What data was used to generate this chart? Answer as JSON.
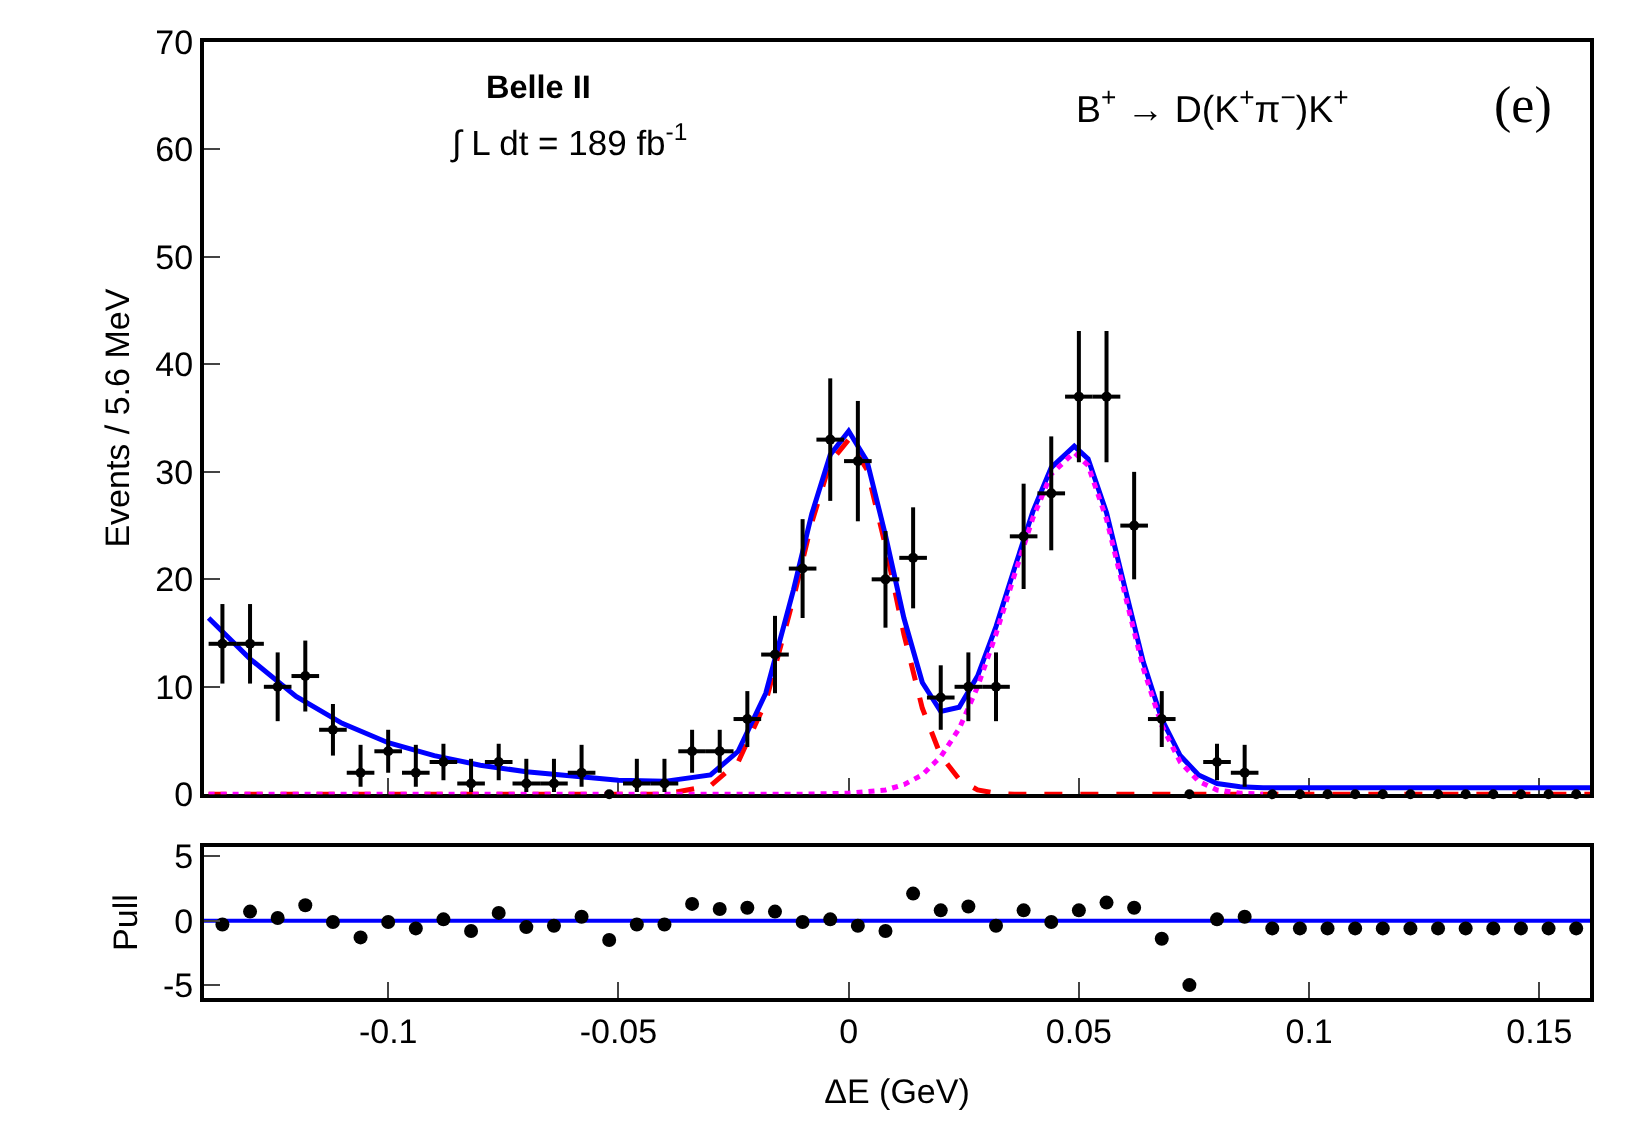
{
  "chart_data": [
    {
      "type": "scatter",
      "ylabel": "Events / 5.6 MeV",
      "xlim": [
        -0.14,
        0.161
      ],
      "xticks": [
        -0.1,
        -0.05,
        0,
        0.05,
        0.1,
        0.15
      ],
      "ylim": [
        0,
        70
      ],
      "yticks": [
        0,
        10,
        20,
        30,
        40,
        50,
        60,
        70
      ],
      "tick_labels": "y",
      "legend": false,
      "annotations": [
        "Belle II",
        "∫ L dt = 189 fb$^{-1}$",
        "B$^{+}$ → D(K$^{+}$π$^{−}$)K$^{+}$",
        "(e)"
      ],
      "x": [
        -0.136,
        -0.13,
        -0.124,
        -0.118,
        -0.112,
        -0.106,
        -0.1,
        -0.094,
        -0.088,
        -0.082,
        -0.076,
        -0.07,
        -0.064,
        -0.058,
        -0.052,
        -0.046,
        -0.04,
        -0.034,
        -0.028,
        -0.022,
        -0.016,
        -0.01,
        -0.004,
        0.002,
        0.008,
        0.014,
        0.02,
        0.026,
        0.032,
        0.038,
        0.044,
        0.05,
        0.056,
        0.062,
        0.068,
        0.074,
        0.08,
        0.086,
        0.092,
        0.098,
        0.104,
        0.11,
        0.116,
        0.122,
        0.128,
        0.134,
        0.14,
        0.146,
        0.152,
        0.158
      ],
      "series": [
        {
          "type": "scatter",
          "marker": "circle",
          "color": "#000000",
          "values": [
            14,
            14,
            10,
            11,
            6,
            2,
            4,
            2,
            3,
            1,
            3,
            1,
            1,
            2,
            0,
            1,
            1,
            4,
            4,
            7,
            13,
            21,
            33,
            31,
            20,
            22,
            9,
            10,
            10,
            24,
            28,
            37,
            37,
            25,
            7,
            0,
            3,
            2,
            0,
            0,
            0,
            0,
            0,
            0,
            0,
            0,
            0,
            0,
            0,
            0
          ],
          "errors": [
            3.7,
            3.7,
            3.2,
            3.3,
            2.4,
            [
              0.7,
              4.6
            ],
            2,
            [
              0.7,
              4.6
            ],
            1.7,
            [
              0.2,
              3.3
            ],
            1.7,
            [
              0.2,
              3.3
            ],
            [
              0.2,
              3.3
            ],
            [
              0.7,
              4.6
            ],
            null,
            [
              0.2,
              3.3
            ],
            [
              0.2,
              3.3
            ],
            2,
            2,
            2.6,
            3.6,
            4.6,
            5.7,
            5.6,
            4.5,
            4.7,
            3,
            3.2,
            3.2,
            4.9,
            5.3,
            6.1,
            6.1,
            5,
            2.6,
            null,
            1.7,
            [
              0.7,
              4.6
            ],
            null,
            null,
            null,
            null,
            null,
            null,
            null,
            null,
            null,
            null,
            null,
            null
          ],
          "xerrors": [
            0.003,
            0.003,
            0.003,
            0.003,
            0.003,
            0.003,
            0.003,
            0.003,
            0.003,
            0.003,
            0.003,
            0.003,
            0.003,
            0.003,
            null,
            0.003,
            0.003,
            0.003,
            0.003,
            0.003,
            0.003,
            0.003,
            0.003,
            0.003,
            0.003,
            0.003,
            0.003,
            0.003,
            0.003,
            0.003,
            0.003,
            0.003,
            0.003,
            0.003,
            0.003,
            null,
            0.003,
            0.003,
            null,
            null,
            null,
            null,
            null,
            null,
            null,
            null,
            null,
            null,
            null,
            null
          ]
        },
        {
          "type": "line",
          "marker": "none",
          "line_style": "dashed",
          "color": "#ff0000",
          "x": [
            -0.139,
            -0.05,
            -0.04,
            -0.03,
            -0.024,
            -0.018,
            -0.012,
            -0.008,
            -0.004,
            0,
            0.004,
            0.008,
            0.012,
            0.016,
            0.02,
            0.024,
            0.028,
            0.032,
            0.036,
            0.04,
            0.161
          ],
          "values": [
            0,
            0,
            0,
            0.8,
            3,
            8.6,
            18.2,
            25.3,
            30.9,
            33,
            30.2,
            23.1,
            14.9,
            8,
            3.6,
            1.4,
            0.4,
            0.1,
            0,
            0,
            0
          ]
        },
        {
          "type": "line",
          "marker": "none",
          "line_style": "solid",
          "color": "#0000ff",
          "x": [
            -0.139,
            -0.13,
            -0.12,
            -0.11,
            -0.1,
            -0.09,
            -0.08,
            -0.07,
            -0.06,
            -0.05,
            -0.04,
            -0.03,
            -0.024,
            -0.018,
            -0.012,
            -0.008,
            -0.004,
            0,
            0.004,
            0.008,
            0.012,
            0.016,
            0.02,
            0.024,
            0.028,
            0.032,
            0.036,
            0.04,
            0.044,
            0.049,
            0.052,
            0.056,
            0.06,
            0.064,
            0.068,
            0.072,
            0.076,
            0.08,
            0.085,
            0.09,
            0.1,
            0.12,
            0.14,
            0.161
          ],
          "values": [
            16.4,
            12.6,
            9.1,
            6.6,
            4.8,
            3.6,
            2.7,
            2.1,
            1.7,
            1.3,
            1.2,
            1.8,
            4,
            9.4,
            19,
            26.1,
            31.6,
            33.8,
            31,
            24.1,
            16.4,
            10.4,
            7.7,
            8.1,
            11,
            15.6,
            21,
            26.3,
            30.4,
            32.4,
            31.2,
            26.2,
            19.2,
            12.3,
            7,
            3.6,
            1.8,
            1,
            0.7,
            0.6,
            0.6,
            0.6,
            0.6,
            0.6
          ]
        },
        {
          "type": "line",
          "marker": "none",
          "line_style": "dotted",
          "color": "#ff00ff",
          "x": [
            -0.139,
            -0.01,
            0,
            0.008,
            0.012,
            0.016,
            0.02,
            0.024,
            0.028,
            0.032,
            0.036,
            0.04,
            0.044,
            0.049,
            0.052,
            0.056,
            0.06,
            0.064,
            0.068,
            0.072,
            0.076,
            0.08,
            0.085,
            0.09
          ],
          "values": [
            0,
            0,
            0.1,
            0.4,
            0.9,
            1.8,
            3.5,
            6.1,
            10,
            14.9,
            20.4,
            25.7,
            29.8,
            31.8,
            30.6,
            25.6,
            18.6,
            11.7,
            6.4,
            3,
            1.2,
            0.4,
            0.1,
            0
          ]
        }
      ]
    },
    {
      "type": "scatter",
      "ylabel": "Pull",
      "xlabel": "ΔE (GeV)",
      "xlim": [
        -0.14,
        0.161
      ],
      "xticks": [
        -0.1,
        -0.05,
        0,
        0.05,
        0.1,
        0.15
      ],
      "ylim": [
        -6,
        5.7
      ],
      "yticks": [
        -5,
        0,
        5
      ],
      "legend": false,
      "marker": "circle",
      "ref_lines": [
        {
          "axis": "y",
          "value": 0,
          "color": "#0000ff",
          "line_style": "solid"
        }
      ],
      "x": [
        -0.136,
        -0.13,
        -0.124,
        -0.118,
        -0.112,
        -0.106,
        -0.1,
        -0.094,
        -0.088,
        -0.082,
        -0.076,
        -0.07,
        -0.064,
        -0.058,
        -0.052,
        -0.046,
        -0.04,
        -0.034,
        -0.028,
        -0.022,
        -0.016,
        -0.01,
        -0.004,
        0.002,
        0.008,
        0.014,
        0.02,
        0.026,
        0.032,
        0.038,
        0.044,
        0.05,
        0.056,
        0.062,
        0.068,
        0.074,
        0.08,
        0.086,
        0.092,
        0.098,
        0.104,
        0.11,
        0.116,
        0.122,
        0.128,
        0.134,
        0.14,
        0.146,
        0.152,
        0.158
      ],
      "series": [
        {
          "color": "#000000",
          "values": [
            -0.3,
            0.7,
            0.2,
            1.2,
            -0.1,
            -1.3,
            -0.1,
            -0.6,
            0.1,
            -0.8,
            0.6,
            -0.5,
            -0.4,
            0.3,
            -1.5,
            -0.3,
            -0.3,
            1.3,
            0.9,
            1,
            0.7,
            -0.1,
            0.1,
            -0.4,
            -0.8,
            2.1,
            0.8,
            1.1,
            -0.4,
            0.8,
            -0.1,
            0.8,
            1.4,
            1,
            -1.4,
            -5,
            0.1,
            0.3,
            -0.6,
            -0.6,
            -0.6,
            -0.6,
            -0.6,
            -0.6,
            -0.6,
            -0.6,
            -0.6,
            -0.6,
            -0.6,
            -0.6
          ]
        }
      ]
    }
  ]
}
